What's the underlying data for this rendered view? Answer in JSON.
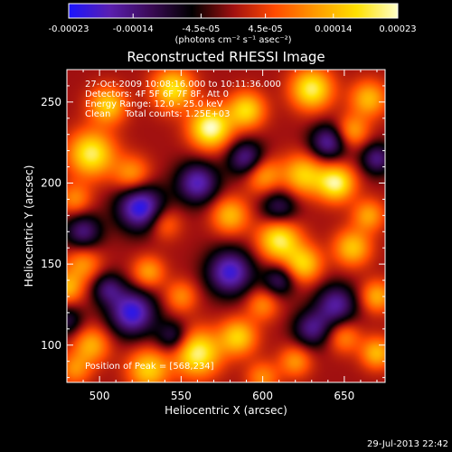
{
  "colorbar": {
    "tick_labels": [
      "-0.00023",
      "-0.00014",
      "-4.5e-05",
      "4.5e-05",
      "0.00014",
      "0.00023"
    ],
    "tick_values": [
      -0.00023,
      -0.00014,
      -4.5e-05,
      4.5e-05,
      0.00014,
      0.00023
    ],
    "range": [
      -0.00023,
      0.00023
    ],
    "units_label": "(photons cm⁻² s⁻¹ asec⁻²)"
  },
  "chart_data": {
    "type": "heatmap",
    "title": "Reconstructed RHESSI Image",
    "xlabel": "Heliocentric X (arcsec)",
    "ylabel": "Heliocentric Y (arcsec)",
    "xlim": [
      480,
      675
    ],
    "ylim": [
      77,
      270
    ],
    "x_ticks": [
      500,
      550,
      600,
      650
    ],
    "x_tick_labels": [
      "500",
      "550",
      "600",
      "650"
    ],
    "y_ticks": [
      100,
      150,
      200,
      250
    ],
    "y_tick_labels": [
      "100",
      "150",
      "200",
      "250"
    ],
    "colormap": [
      "#1a14ff",
      "#5a1fb0",
      "#3a0a55",
      "#000000",
      "#a01010",
      "#ff4a00",
      "#ff9a00",
      "#ffe000",
      "#ffffc8"
    ],
    "grid": false,
    "peak_position": [
      568,
      234
    ],
    "info_lines": [
      "27-Oct-2009 10:08:16.000 to 10:11:36.000",
      "Detectors: 4F 5F 6F 7F 8F, Att 0",
      "Energy Range: 12.0 - 25.0 keV",
      "Clean     Total counts: 1.25E+03"
    ],
    "peak_label": "Position of Peak = [568,234]",
    "sources": [
      {
        "x": 568,
        "y": 234,
        "v": 0.00023,
        "s": 9
      },
      {
        "x": 545,
        "y": 258,
        "v": 0.00018,
        "s": 9
      },
      {
        "x": 590,
        "y": 245,
        "v": 0.00017,
        "s": 8
      },
      {
        "x": 630,
        "y": 258,
        "v": 0.0002,
        "s": 9
      },
      {
        "x": 665,
        "y": 252,
        "v": 0.00014,
        "s": 8
      },
      {
        "x": 655,
        "y": 232,
        "v": 0.00012,
        "s": 7
      },
      {
        "x": 625,
        "y": 205,
        "v": 0.00016,
        "s": 9
      },
      {
        "x": 645,
        "y": 200,
        "v": 0.00021,
        "s": 8
      },
      {
        "x": 600,
        "y": 205,
        "v": 0.00013,
        "s": 8
      },
      {
        "x": 580,
        "y": 180,
        "v": 0.00014,
        "s": 8
      },
      {
        "x": 495,
        "y": 218,
        "v": 0.0002,
        "s": 10
      },
      {
        "x": 520,
        "y": 205,
        "v": 0.00012,
        "s": 8
      },
      {
        "x": 505,
        "y": 248,
        "v": 0.00016,
        "s": 8
      },
      {
        "x": 485,
        "y": 190,
        "v": 0.0001,
        "s": 7
      },
      {
        "x": 540,
        "y": 175,
        "v": 9e-05,
        "s": 7
      },
      {
        "x": 610,
        "y": 165,
        "v": 0.0002,
        "s": 9
      },
      {
        "x": 625,
        "y": 150,
        "v": 0.00016,
        "s": 8
      },
      {
        "x": 655,
        "y": 160,
        "v": 0.00015,
        "s": 8
      },
      {
        "x": 665,
        "y": 180,
        "v": 0.00012,
        "s": 7
      },
      {
        "x": 530,
        "y": 145,
        "v": 0.00012,
        "s": 7
      },
      {
        "x": 550,
        "y": 130,
        "v": 0.0001,
        "s": 7
      },
      {
        "x": 490,
        "y": 150,
        "v": 0.00011,
        "s": 8
      },
      {
        "x": 480,
        "y": 135,
        "v": 0.00013,
        "s": 7
      },
      {
        "x": 600,
        "y": 125,
        "v": 0.0001,
        "s": 7
      },
      {
        "x": 670,
        "y": 130,
        "v": 0.00013,
        "s": 7
      },
      {
        "x": 650,
        "y": 105,
        "v": 0.0001,
        "s": 7
      },
      {
        "x": 670,
        "y": 95,
        "v": 0.00014,
        "s": 7
      },
      {
        "x": 560,
        "y": 95,
        "v": 0.00021,
        "s": 10
      },
      {
        "x": 585,
        "y": 105,
        "v": 0.00016,
        "s": 8
      },
      {
        "x": 530,
        "y": 85,
        "v": 0.00016,
        "s": 9
      },
      {
        "x": 495,
        "y": 100,
        "v": 0.00013,
        "s": 8
      },
      {
        "x": 620,
        "y": 90,
        "v": 0.00011,
        "s": 7
      },
      {
        "x": 600,
        "y": 80,
        "v": 0.0001,
        "s": 7
      },
      {
        "x": 485,
        "y": 85,
        "v": 0.0001,
        "s": 7
      },
      {
        "x": 525,
        "y": 185,
        "v": -0.00022,
        "s": 10
      },
      {
        "x": 590,
        "y": 215,
        "v": -0.00016,
        "s": 8
      },
      {
        "x": 520,
        "y": 120,
        "v": -0.00021,
        "s": 10
      },
      {
        "x": 580,
        "y": 145,
        "v": -0.0002,
        "s": 10
      },
      {
        "x": 645,
        "y": 125,
        "v": -0.00016,
        "s": 9
      },
      {
        "x": 640,
        "y": 225,
        "v": -0.00016,
        "s": 8
      },
      {
        "x": 560,
        "y": 200,
        "v": -0.00018,
        "s": 9
      },
      {
        "x": 670,
        "y": 215,
        "v": -0.00014,
        "s": 7
      },
      {
        "x": 610,
        "y": 185,
        "v": -0.00012,
        "s": 8
      },
      {
        "x": 490,
        "y": 170,
        "v": -0.00014,
        "s": 8
      },
      {
        "x": 610,
        "y": 140,
        "v": -0.00012,
        "s": 7
      },
      {
        "x": 545,
        "y": 105,
        "v": -0.00012,
        "s": 7
      },
      {
        "x": 505,
        "y": 135,
        "v": -0.00012,
        "s": 7
      },
      {
        "x": 630,
        "y": 110,
        "v": -0.00014,
        "s": 8
      },
      {
        "x": 480,
        "y": 115,
        "v": -0.0001,
        "s": 7
      }
    ]
  },
  "footer": {
    "date_stamp": "29-Jul-2013 22:42"
  }
}
